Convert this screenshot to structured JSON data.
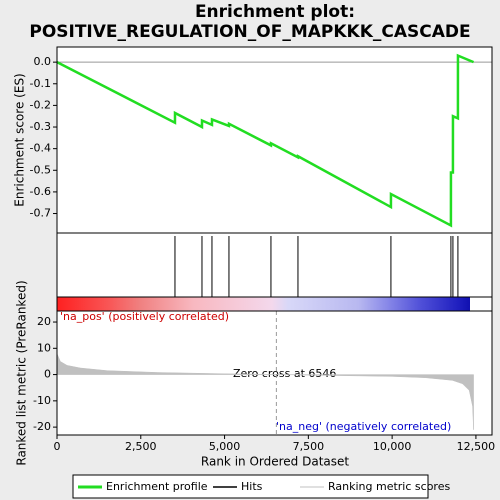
{
  "chart_data": [
    {
      "type": "line",
      "title": "Enrichment plot:",
      "subtitle": "POSITIVE_REGULATION_OF_MAPKKK_CASCADE",
      "ylabel": "Enrichment score (ES)",
      "xlim": [
        0,
        12980
      ],
      "ylim": [
        -0.79,
        0.07
      ],
      "yticks": [
        {
          "value": 0,
          "label": "0.0"
        },
        -0.1,
        -0.2,
        -0.3,
        -0.4,
        -0.5,
        -0.6,
        -0.7
      ],
      "series": [
        {
          "name": "Enrichment profile",
          "color": "#22dd22",
          "x": [
            0,
            3520,
            3521,
            4326,
            4327,
            4624,
            4625,
            5131,
            5132,
            6384,
            6385,
            7190,
            7191,
            9964,
            9965,
            11754,
            11755,
            11814,
            11815,
            11963,
            11964,
            12430
          ],
          "values": [
            0,
            -0.28,
            -0.235,
            -0.3,
            -0.27,
            -0.29,
            -0.265,
            -0.295,
            -0.285,
            -0.385,
            -0.375,
            -0.44,
            -0.435,
            -0.67,
            -0.61,
            -0.755,
            -0.51,
            -0.51,
            -0.25,
            -0.26,
            0.03,
            0
          ]
        }
      ]
    },
    {
      "type": "hits",
      "xlim": [
        0,
        12980
      ],
      "series": [
        {
          "name": "Hits",
          "color": "#000000",
          "x": [
            3520,
            4326,
            4624,
            5131,
            6384,
            7190,
            9964,
            11754,
            11814,
            11963
          ]
        }
      ]
    },
    {
      "type": "area",
      "ylabel": "Ranked list metric (PreRanked)",
      "xlabel": "Rank in Ordered Dataset",
      "xlim": [
        0,
        12980
      ],
      "xticks": [
        0,
        {
          "value": 2500,
          "label": "2,500"
        },
        {
          "value": 5000,
          "label": "5,000"
        },
        {
          "value": 7500,
          "label": "7,500"
        },
        {
          "value": 10000,
          "label": "10,000"
        },
        {
          "value": 12500,
          "label": "12,500"
        }
      ],
      "ylim": [
        -23,
        24.2
      ],
      "yticks": [
        20,
        10,
        0,
        -10,
        -20
      ],
      "series": [
        {
          "name": "Ranking metric scores",
          "color": "#c0c0c0",
          "x": [
            0,
            100,
            300,
            700,
            1500,
            3000,
            5000,
            6546,
            8000,
            10000,
            11000,
            11800,
            12100,
            12300,
            12400,
            12430
          ],
          "values": [
            8,
            5,
            3.5,
            2.5,
            1.5,
            0.8,
            0.3,
            0,
            -0.3,
            -0.7,
            -1.2,
            -2.2,
            -3.5,
            -6,
            -12,
            -21
          ]
        }
      ],
      "pos_label": "'na_pos' (positively correlated)",
      "neg_label": "'na_neg' (negatively correlated)",
      "zero_cross_label": "Zero cross at 6546",
      "zero_cross": 6546
    }
  ]
}
